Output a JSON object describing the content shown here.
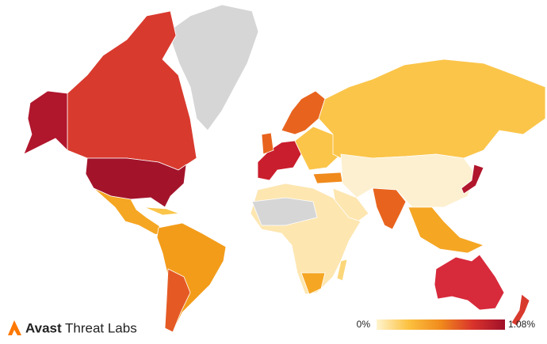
{
  "brand": {
    "name": "Avast",
    "subtitle": "Threat Labs"
  },
  "legend": {
    "min": {
      "value": 0,
      "label": "0%"
    },
    "max": {
      "value": 1.08,
      "label": "1.08%"
    },
    "colors": [
      "#fff4cf",
      "#fcc13f",
      "#f08a1c",
      "#d9332c",
      "#a0102a"
    ]
  }
}
